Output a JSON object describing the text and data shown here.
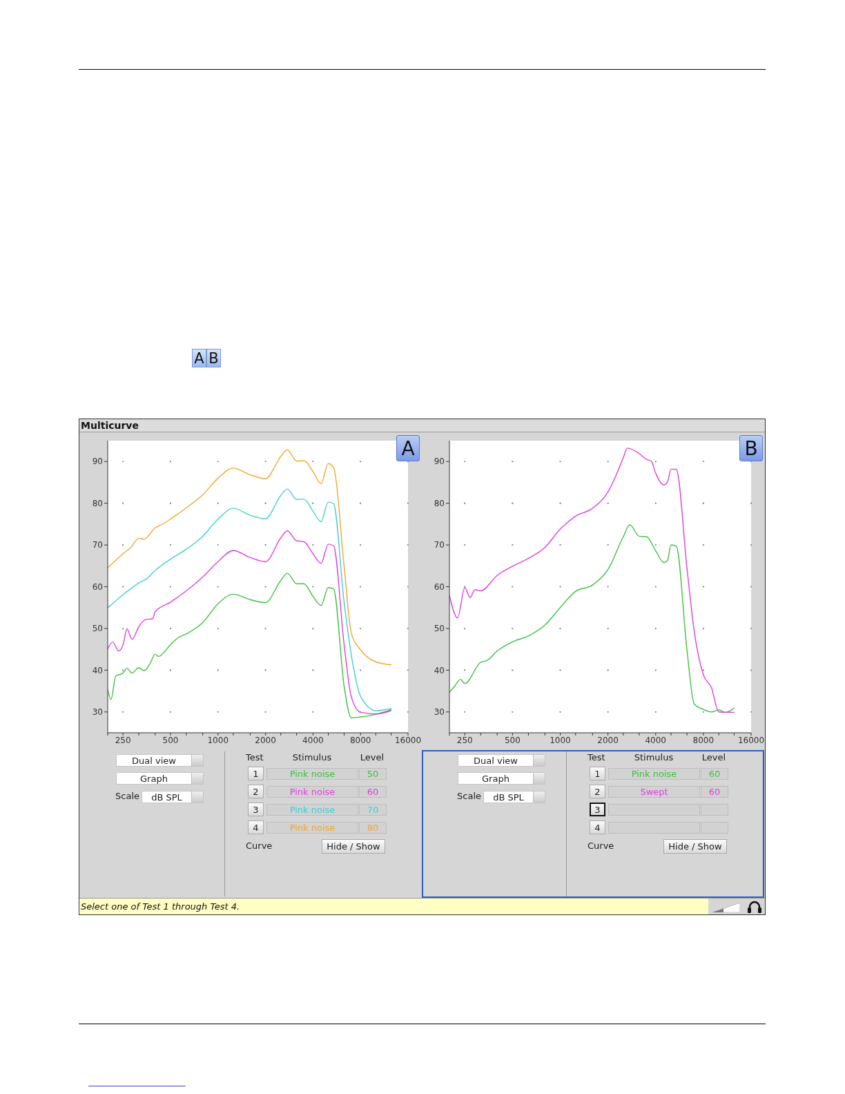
{
  "chart_data": [
    {
      "type": "other",
      "annotations": [
        "A",
        "B"
      ]
    },
    {
      "type": "other",
      "title": "Multicurve"
    },
    {
      "type": "line",
      "title": "A",
      "xlim": [
        200,
        16000
      ],
      "ylim": [
        25,
        95
      ],
      "log": "x",
      "xticks": [
        {
          "value": 200,
          "label": null
        },
        250,
        {
          "value": 315,
          "label": null
        },
        {
          "value": 400,
          "label": null
        },
        500,
        {
          "value": 630,
          "label": null
        },
        {
          "value": 800,
          "label": null
        },
        1000,
        {
          "value": 1250,
          "label": null
        },
        {
          "value": 1600,
          "label": null
        },
        2000,
        {
          "value": 2500,
          "label": null
        },
        {
          "value": 3150,
          "label": null
        },
        4000,
        {
          "value": 5000,
          "label": null
        },
        {
          "value": 6300,
          "label": null
        },
        8000,
        {
          "value": 10000,
          "label": null
        },
        {
          "value": 12500,
          "label": null
        },
        16000
      ],
      "yticks": [
        30,
        40,
        50,
        60,
        70,
        80,
        90
      ],
      "grid": true,
      "legend": "bottom",
      "annotations": [
        "Dual view",
        "Graph",
        "Scale",
        "dB SPL",
        "Test",
        "Stimulus",
        "Level",
        "1",
        "2",
        "3",
        "4",
        "50",
        "60",
        "70",
        "80",
        "Curve",
        "Hide / Show"
      ],
      "series": [
        {
          "name": "Pink noise",
          "color": "#3cc23c",
          "x": [
            200,
            210,
            225,
            250,
            265,
            285,
            315,
            340,
            370,
            400,
            420,
            500,
            560,
            630,
            800,
            1000,
            1250,
            1600,
            2000,
            2500,
            2750,
            3150,
            3500,
            4000,
            4500,
            5000,
            5400,
            6300,
            7000,
            8000,
            10000,
            12500
          ],
          "values": [
            35.4,
            33.0,
            38.6,
            39.3,
            40.5,
            39.3,
            40.6,
            39.9,
            41.5,
            43.8,
            43.3,
            46.1,
            47.8,
            48.7,
            51.4,
            55.9,
            58.2,
            56.9,
            56.2,
            61.5,
            63.2,
            60.7,
            60.7,
            57.7,
            55.5,
            59.8,
            59.5,
            36.1,
            28.6,
            28.8,
            29.4,
            30.5
          ]
        },
        {
          "name": "Pink noise",
          "color": "#dd3fdd",
          "x": [
            200,
            215,
            235,
            250,
            265,
            285,
            315,
            350,
            385,
            400,
            500,
            630,
            800,
            1000,
            1250,
            1600,
            2000,
            2500,
            2750,
            3150,
            3500,
            4000,
            4500,
            5000,
            5400,
            6300,
            7000,
            8000,
            10000,
            12500
          ],
          "values": [
            45.1,
            46.7,
            44.6,
            46.0,
            49.9,
            47.4,
            50.4,
            52.2,
            52.3,
            54.0,
            56.3,
            59.0,
            62.3,
            66.0,
            68.7,
            67.0,
            66.0,
            71.7,
            73.4,
            71.0,
            70.8,
            67.9,
            65.6,
            70.2,
            69.8,
            46.1,
            33.6,
            29.9,
            29.5,
            30.3
          ]
        },
        {
          "name": "Pink noise",
          "color": "#3fcfcf",
          "x": [
            200,
            250,
            280,
            315,
            350,
            400,
            500,
            630,
            800,
            1000,
            1250,
            1600,
            2000,
            2500,
            2750,
            3150,
            3500,
            4000,
            4500,
            5000,
            5400,
            6300,
            7200,
            8000,
            10000,
            12500
          ],
          "values": [
            54.9,
            58.1,
            59.5,
            60.9,
            61.8,
            63.9,
            66.6,
            69.0,
            72.1,
            76.2,
            78.8,
            77.1,
            76.3,
            81.9,
            83.4,
            80.9,
            81.0,
            78.1,
            75.6,
            80.3,
            79.9,
            56.2,
            40.9,
            33.8,
            30.3,
            30.8
          ]
        },
        {
          "name": "Pink noise",
          "color": "#f0a532",
          "x": [
            200,
            250,
            280,
            315,
            340,
            400,
            450,
            500,
            630,
            800,
            1000,
            1250,
            1600,
            2000,
            2500,
            2750,
            3150,
            3500,
            4000,
            4500,
            5000,
            5400,
            6300,
            7000,
            8000,
            10000,
            12500
          ],
          "values": [
            64.5,
            67.9,
            69.4,
            71.6,
            71.4,
            74.1,
            75.1,
            76.2,
            78.9,
            82.0,
            86.0,
            88.4,
            86.8,
            85.9,
            91.2,
            92.8,
            90.1,
            90.2,
            87.6,
            84.7,
            89.5,
            88.6,
            64.9,
            48.8,
            44.9,
            42.0,
            41.3
          ]
        }
      ]
    },
    {
      "type": "line",
      "title": "B",
      "xlim": [
        200,
        16000
      ],
      "ylim": [
        25,
        95
      ],
      "log": "x",
      "xticks": [
        {
          "value": 200,
          "label": null
        },
        250,
        {
          "value": 315,
          "label": null
        },
        {
          "value": 400,
          "label": null
        },
        500,
        {
          "value": 630,
          "label": null
        },
        {
          "value": 800,
          "label": null
        },
        1000,
        {
          "value": 1250,
          "label": null
        },
        {
          "value": 1600,
          "label": null
        },
        2000,
        {
          "value": 2500,
          "label": null
        },
        {
          "value": 3150,
          "label": null
        },
        4000,
        {
          "value": 5000,
          "label": null
        },
        {
          "value": 6300,
          "label": null
        },
        8000,
        {
          "value": 10000,
          "label": null
        },
        {
          "value": 12500,
          "label": null
        },
        16000
      ],
      "yticks": [
        30,
        40,
        50,
        60,
        70,
        80,
        90
      ],
      "grid": true,
      "legend": "bottom",
      "annotations": [
        "Dual view",
        "Graph",
        "Scale",
        "dB SPL",
        "Test",
        "Stimulus",
        "Level",
        "1",
        "2",
        "3",
        "4",
        "60",
        "60",
        "Curve",
        "Hide / Show"
      ],
      "series": [
        {
          "name": "Pink noise",
          "color": "#3cc23c",
          "x": [
            200,
            215,
            235,
            250,
            315,
            345,
            400,
            500,
            630,
            800,
            1000,
            1250,
            1600,
            2000,
            2500,
            2750,
            3150,
            3500,
            4000,
            4500,
            4750,
            5000,
            5400,
            6300,
            7000,
            8000,
            9000,
            10000,
            11000,
            12500
          ],
          "values": [
            34.7,
            36.1,
            37.8,
            36.8,
            41.9,
            42.3,
            44.6,
            46.8,
            48.2,
            50.8,
            55.0,
            58.9,
            60.4,
            64.1,
            72.0,
            74.8,
            72.1,
            72.0,
            68.6,
            65.8,
            66.3,
            70.0,
            69.7,
            44.9,
            31.9,
            30.6,
            30.0,
            30.5,
            29.9,
            30.9
          ]
        },
        {
          "name": "Swept",
          "color": "#dd3fdd",
          "x": [
            200,
            225,
            250,
            270,
            290,
            315,
            400,
            500,
            630,
            800,
            1000,
            1250,
            1600,
            2000,
            2500,
            2650,
            3150,
            3500,
            3750,
            4000,
            4500,
            4750,
            5000,
            5400,
            6300,
            7000,
            8000,
            9000,
            10000,
            11000,
            12500
          ],
          "values": [
            57.9,
            52.5,
            59.8,
            57.4,
            59.3,
            59.0,
            62.7,
            64.9,
            66.8,
            69.4,
            73.8,
            76.9,
            78.8,
            82.7,
            90.9,
            93.2,
            91.9,
            90.5,
            90.1,
            87.2,
            84.4,
            85.1,
            88.2,
            88.1,
            64.5,
            49.4,
            38.9,
            35.8,
            30.0,
            29.9,
            29.9
          ]
        }
      ]
    },
    {
      "type": "other",
      "annotations": [
        "Select one of Test 1 through Test 4."
      ]
    }
  ]
}
